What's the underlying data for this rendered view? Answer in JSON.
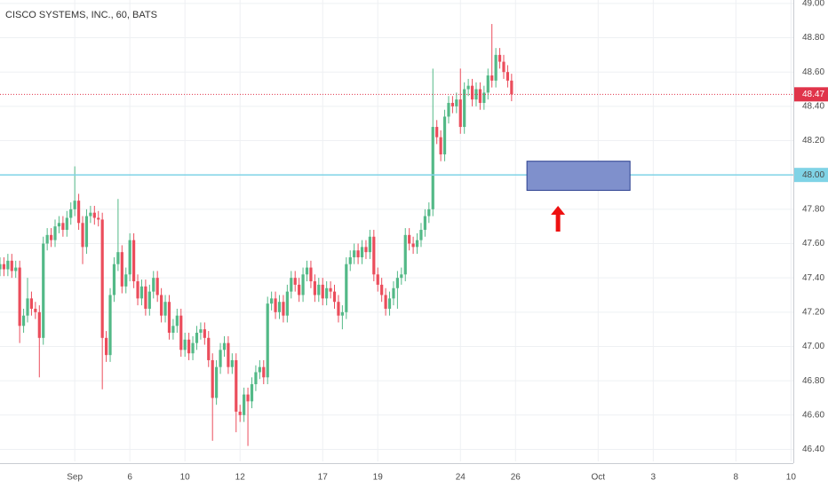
{
  "chart_data": {
    "type": "candlestick",
    "title": "CISCO SYSTEMS, INC., 60, BATS",
    "up_color": "#53b987",
    "down_color": "#eb4d5c",
    "grid": true,
    "xlim": [
      0,
      201.6
    ],
    "ylim": [
      46.33,
      49.02
    ],
    "xticks": [
      {
        "value": 19,
        "label": "Sep"
      },
      {
        "value": 33,
        "label": "6"
      },
      {
        "value": 47,
        "label": "10"
      },
      {
        "value": 61,
        "label": "12"
      },
      {
        "value": 82,
        "label": "17"
      },
      {
        "value": 96,
        "label": "19"
      },
      {
        "value": 117,
        "label": "24"
      },
      {
        "value": 131,
        "label": "26"
      },
      {
        "value": 152,
        "label": "Oct"
      },
      {
        "value": 166,
        "label": "3"
      },
      {
        "value": 187,
        "label": "8"
      },
      {
        "value": 201,
        "label": "10"
      }
    ],
    "yticks": [
      {
        "value": 46.4,
        "label": "46.40"
      },
      {
        "value": 46.6,
        "label": "46.60"
      },
      {
        "value": 46.8,
        "label": "46.80"
      },
      {
        "value": 47,
        "label": "47.00"
      },
      {
        "value": 47.2,
        "label": "47.20"
      },
      {
        "value": 47.4,
        "label": "47.40"
      },
      {
        "value": 47.6,
        "label": "47.60"
      },
      {
        "value": 47.8,
        "label": "47.80"
      },
      {
        "value": 48.2,
        "label": "48.20"
      },
      {
        "value": 48.4,
        "label": "48.40"
      },
      {
        "value": 48.6,
        "label": "48.60"
      },
      {
        "value": 48.8,
        "label": "48.80"
      },
      {
        "value": 49,
        "label": "49.00"
      }
    ],
    "open": [
      47.45,
      47.48,
      47.45,
      47.5,
      47.44,
      47.46,
      47.12,
      47.18,
      47.28,
      47.22,
      47.2,
      47.05,
      47.6,
      47.65,
      47.62,
      47.7,
      47.72,
      47.68,
      47.75,
      47.8,
      47.85,
      47.72,
      47.58,
      47.76,
      47.78,
      47.75,
      47.74,
      47.05,
      46.95,
      47.3,
      47.48,
      47.55,
      47.35,
      47.42,
      47.62,
      47.38,
      47.28,
      47.35,
      47.22,
      47.32,
      47.4,
      47.3,
      47.18,
      47.26,
      47.08,
      47.12,
      47.18,
      46.98,
      47.04,
      46.96,
      47.02,
      47.08,
      47.1,
      47.05,
      46.92,
      46.7,
      46.88,
      46.98,
      47.02,
      46.88,
      46.92,
      46.62,
      46.6,
      46.72,
      46.68,
      46.78,
      46.85,
      46.88,
      46.82,
      47.25,
      47.28,
      47.2,
      47.26,
      47.18,
      47.32,
      47.4,
      47.36,
      47.3,
      47.42,
      47.46,
      47.38,
      47.3,
      47.36,
      47.28,
      47.34,
      47.32,
      47.26,
      47.18,
      47.2,
      47.48,
      47.52,
      47.56,
      47.52,
      47.58,
      47.55,
      47.64,
      47.42,
      47.36,
      47.3,
      47.22,
      47.28,
      47.34,
      47.4,
      47.42,
      47.65,
      47.6,
      47.58,
      47.62,
      47.68,
      47.76,
      47.8,
      48.28,
      48.22,
      48.12,
      48.34,
      48.42,
      48.4,
      48.44,
      48.28,
      48.5,
      48.52,
      48.44,
      48.5,
      48.42,
      48.48,
      48.58,
      48.55,
      48.7,
      48.66,
      48.6,
      48.55
    ],
    "high": [
      47.52,
      47.52,
      47.54,
      47.54,
      47.5,
      47.5,
      47.22,
      47.4,
      47.32,
      47.26,
      47.24,
      47.64,
      47.69,
      47.69,
      47.74,
      47.76,
      47.76,
      47.79,
      47.84,
      48.05,
      47.89,
      47.76,
      47.8,
      47.82,
      47.82,
      47.79,
      47.78,
      47.09,
      47.34,
      47.52,
      47.86,
      47.59,
      47.46,
      47.66,
      47.66,
      47.42,
      47.39,
      47.39,
      47.36,
      47.44,
      47.44,
      47.34,
      47.3,
      47.3,
      47.16,
      47.22,
      47.22,
      47.08,
      47.08,
      47.06,
      47.12,
      47.14,
      47.14,
      47.09,
      46.96,
      46.92,
      47.02,
      47.06,
      47.06,
      46.96,
      46.96,
      46.66,
      46.76,
      46.76,
      46.82,
      46.89,
      46.92,
      46.92,
      47.29,
      47.32,
      47.32,
      47.3,
      47.3,
      47.36,
      47.44,
      47.44,
      47.4,
      47.46,
      47.5,
      47.5,
      47.42,
      47.4,
      47.4,
      47.38,
      47.38,
      47.36,
      47.3,
      47.24,
      47.52,
      47.56,
      47.6,
      47.6,
      47.62,
      47.62,
      47.68,
      47.68,
      47.46,
      47.4,
      47.34,
      47.32,
      47.38,
      47.44,
      47.46,
      47.69,
      47.69,
      47.64,
      47.66,
      47.72,
      47.8,
      47.84,
      48.62,
      48.32,
      48.26,
      48.38,
      48.46,
      48.46,
      48.48,
      48.62,
      48.54,
      48.56,
      48.56,
      48.54,
      48.54,
      48.52,
      48.62,
      48.88,
      48.74,
      48.74,
      48.7,
      48.64,
      48.59
    ],
    "low": [
      47.41,
      47.41,
      47.41,
      47.4,
      47.4,
      47.02,
      47.08,
      47.14,
      47.18,
      47.16,
      46.82,
      47.01,
      47.56,
      47.58,
      47.58,
      47.66,
      47.64,
      47.64,
      47.71,
      47.76,
      47.68,
      47.48,
      47.54,
      47.72,
      47.71,
      47.7,
      46.75,
      46.91,
      46.91,
      47.26,
      47.44,
      47.31,
      47.31,
      47.38,
      47.34,
      47.24,
      47.24,
      47.18,
      47.18,
      47.28,
      47.26,
      47.14,
      47.14,
      47.04,
      47.04,
      47.08,
      46.94,
      46.94,
      46.92,
      46.92,
      46.98,
      47.04,
      47.01,
      46.88,
      46.45,
      46.66,
      46.84,
      46.94,
      46.84,
      46.84,
      46.5,
      46.56,
      46.56,
      46.42,
      46.64,
      46.74,
      46.81,
      46.78,
      46.78,
      47.21,
      47.16,
      47.16,
      47.14,
      47.14,
      47.28,
      47.32,
      47.26,
      47.26,
      47.38,
      47.34,
      47.26,
      47.26,
      47.24,
      47.24,
      47.28,
      47.22,
      47.14,
      47.1,
      47.16,
      47.44,
      47.48,
      47.48,
      47.48,
      47.51,
      47.51,
      47.38,
      47.32,
      47.26,
      47.18,
      47.18,
      47.24,
      47.22,
      47.36,
      47.38,
      47.56,
      47.54,
      47.54,
      47.58,
      47.64,
      47.72,
      47.76,
      48.18,
      48.08,
      48.08,
      48.3,
      48.36,
      48.36,
      48.24,
      48.24,
      48.46,
      48.4,
      48.4,
      48.38,
      48.38,
      48.44,
      48.51,
      48.51,
      48.62,
      48.56,
      48.51,
      48.43
    ],
    "close": [
      47.48,
      47.45,
      47.5,
      47.44,
      47.46,
      47.12,
      47.18,
      47.28,
      47.22,
      47.2,
      47.05,
      47.6,
      47.65,
      47.62,
      47.7,
      47.72,
      47.68,
      47.75,
      47.8,
      47.85,
      47.72,
      47.58,
      47.76,
      47.78,
      47.75,
      47.74,
      47.05,
      46.95,
      47.3,
      47.48,
      47.55,
      47.35,
      47.42,
      47.62,
      47.38,
      47.28,
      47.35,
      47.22,
      47.32,
      47.4,
      47.3,
      47.18,
      47.26,
      47.08,
      47.12,
      47.18,
      46.98,
      47.04,
      46.96,
      47.02,
      47.08,
      47.1,
      47.05,
      46.92,
      46.7,
      46.88,
      46.98,
      47.02,
      46.88,
      46.92,
      46.62,
      46.6,
      46.72,
      46.68,
      46.78,
      46.85,
      46.88,
      46.82,
      47.25,
      47.28,
      47.2,
      47.26,
      47.18,
      47.32,
      47.4,
      47.36,
      47.3,
      47.42,
      47.46,
      47.38,
      47.3,
      47.36,
      47.28,
      47.34,
      47.32,
      47.26,
      47.18,
      47.2,
      47.48,
      47.52,
      47.56,
      47.52,
      47.58,
      47.55,
      47.64,
      47.42,
      47.36,
      47.3,
      47.22,
      47.28,
      47.34,
      47.4,
      47.42,
      47.65,
      47.6,
      47.58,
      47.62,
      47.68,
      47.76,
      47.8,
      48.28,
      48.22,
      48.12,
      48.34,
      48.42,
      48.4,
      48.44,
      48.28,
      48.5,
      48.52,
      48.44,
      48.5,
      48.42,
      48.48,
      48.58,
      48.55,
      48.7,
      48.66,
      48.6,
      48.55,
      48.47
    ],
    "last_price_label": "48.47",
    "last_price_color": "#e0344a",
    "horizontal_line": {
      "value": 48,
      "label": "48.00",
      "color": "#7fd3e6"
    },
    "rectangle": {
      "x": [
        133.9,
        160.1
      ],
      "y": [
        47.91,
        48.08
      ],
      "fill": "#7f90cc",
      "stroke": "#2a3f8f"
    },
    "arrow": {
      "x": 141.8,
      "y": [
        47.67,
        47.82
      ],
      "color": "#ee1111"
    }
  }
}
